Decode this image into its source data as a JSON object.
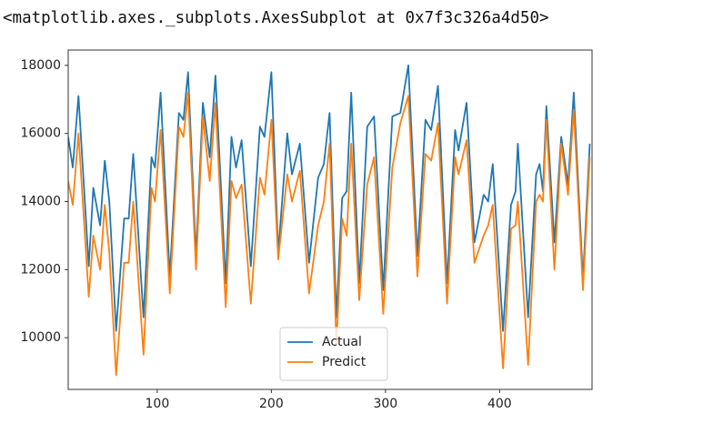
{
  "output_text": "<matplotlib.axes._subplots.AxesSubplot at 0x7f3c326a4d50>",
  "chart_data": {
    "type": "line",
    "x": [
      22,
      26,
      31,
      40,
      44,
      50,
      54,
      58,
      64,
      71,
      75,
      79,
      88,
      95,
      98,
      103,
      111,
      119,
      123,
      127,
      134,
      140,
      146,
      151,
      160,
      165,
      169,
      174,
      182,
      190,
      194,
      200,
      206,
      214,
      218,
      225,
      233,
      241,
      246,
      251,
      257,
      262,
      266,
      270,
      277,
      284,
      290,
      298,
      306,
      313,
      320,
      328,
      335,
      340,
      346,
      354,
      361,
      364,
      371,
      378,
      386,
      390,
      394,
      403,
      410,
      414,
      416,
      425,
      432,
      435,
      438,
      441,
      448,
      454,
      460,
      465,
      473,
      479
    ],
    "series": [
      {
        "name": "Actual",
        "color": "#1f77b4",
        "values": [
          15900,
          15000,
          17100,
          12100,
          14400,
          13300,
          15200,
          14000,
          10200,
          13500,
          13500,
          15400,
          10600,
          15300,
          15000,
          17200,
          11800,
          16600,
          16400,
          17800,
          12400,
          16900,
          15300,
          17700,
          11600,
          15900,
          15000,
          15800,
          12100,
          16200,
          15900,
          17800,
          12500,
          16000,
          14800,
          15700,
          12200,
          14700,
          15100,
          16600,
          10600,
          14100,
          14300,
          17200,
          11600,
          16200,
          16500,
          11400,
          16500,
          16600,
          18000,
          12400,
          16400,
          16100,
          17400,
          11600,
          16100,
          15500,
          16900,
          12800,
          14200,
          14000,
          15100,
          10200,
          13900,
          14300,
          15700,
          10600,
          14800,
          15100,
          14300,
          16800,
          12800,
          15900,
          14500,
          17200,
          11700,
          15700
        ]
      },
      {
        "name": "Predict",
        "color": "#ff7f0e",
        "values": [
          14600,
          13900,
          16000,
          11200,
          13000,
          12000,
          13900,
          12500,
          8900,
          12200,
          12200,
          14000,
          9500,
          14400,
          14000,
          16100,
          11300,
          16200,
          15900,
          17200,
          12000,
          16500,
          14600,
          16900,
          10900,
          14600,
          14100,
          14500,
          11000,
          14700,
          14200,
          16400,
          12300,
          14800,
          14000,
          14900,
          11300,
          13300,
          14000,
          15700,
          9800,
          13500,
          13000,
          15700,
          11100,
          14500,
          15300,
          10700,
          15000,
          16300,
          17100,
          11800,
          15400,
          15200,
          16300,
          11000,
          15300,
          14800,
          15800,
          12200,
          13000,
          13300,
          13900,
          9100,
          13200,
          13300,
          14000,
          9200,
          14000,
          14200,
          14000,
          16400,
          12000,
          15700,
          14200,
          16700,
          11400,
          15300
        ]
      }
    ],
    "xlim": [
      22,
      481
    ],
    "ylim": [
      8480,
      18450
    ],
    "xticks": [
      100,
      200,
      300,
      400
    ],
    "yticks": [
      10000,
      12000,
      14000,
      16000,
      18000
    ],
    "legend": "lower center"
  }
}
